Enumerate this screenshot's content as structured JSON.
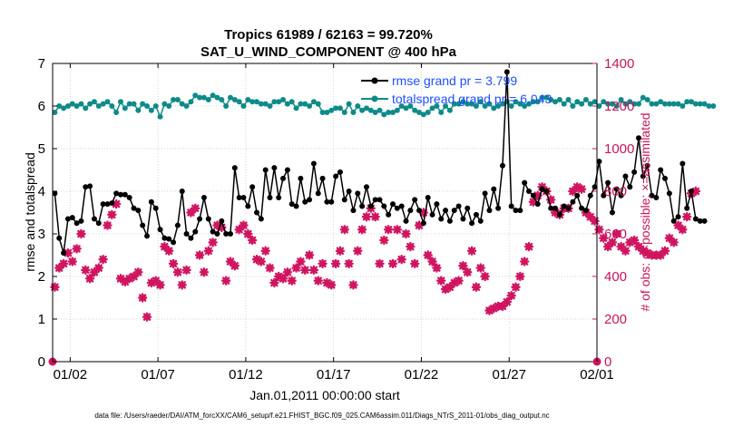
{
  "chart_data": {
    "type": "line",
    "title": "Tropics 61989 / 62163 = 99.720%",
    "subtitle": "SAT_U_WIND_COMPONENT @ 400 hPa",
    "xlabel": "Jan.01,2011 00:00:00 start",
    "ylabel": "rmse and totalspread",
    "y2label": "# of obs: o=possible; ×=assimilated",
    "footer": "data file: /Users/raeder/DAI/ATM_forcXX/CAM6_setup/f.e21.FHIST_BGC.f09_025.CAM6assim.011/Diags_NTrS_2011-01/obs_diag_output.nc",
    "xlim": [
      0,
      31
    ],
    "ylim": [
      0,
      7
    ],
    "y2lim": [
      0,
      1400
    ],
    "x_ticks": [
      {
        "x": 1,
        "label": "01/02"
      },
      {
        "x": 6,
        "label": "01/07"
      },
      {
        "x": 11,
        "label": "01/12"
      },
      {
        "x": 16,
        "label": "01/17"
      },
      {
        "x": 21,
        "label": "01/22"
      },
      {
        "x": 26,
        "label": "01/27"
      },
      {
        "x": 31,
        "label": "02/01"
      }
    ],
    "y_ticks": [
      0,
      1,
      2,
      3,
      4,
      5,
      6,
      7
    ],
    "y2_ticks": [
      0,
      200,
      400,
      600,
      800,
      1000,
      1200,
      1400
    ],
    "grid": true,
    "legend_position": "top-right",
    "step_days": 0.25,
    "colors": {
      "rmse": "#000000",
      "spread": "#0e8a8a",
      "obs": "#d01460",
      "right_axis": "#c8145a",
      "legend_text": "#1f4fff"
    },
    "series": [
      {
        "name": "rmse grand pr = 3.799",
        "axis": "left",
        "x0": 0.125,
        "values": [
          3.95,
          2.9,
          2.55,
          3.35,
          3.38,
          3.25,
          3.3,
          4.1,
          4.12,
          3.35,
          3.25,
          3.7,
          3.7,
          3.72,
          3.95,
          3.92,
          3.92,
          3.85,
          3.6,
          3.55,
          3.2,
          2.95,
          3.75,
          3.6,
          3.1,
          2.9,
          2.88,
          2.8,
          3.2,
          4.0,
          3.0,
          2.9,
          3.05,
          3.35,
          3.85,
          3.35,
          3.05,
          3.0,
          3.3,
          3.0,
          3.0,
          4.55,
          3.85,
          3.85,
          3.65,
          4.1,
          3.5,
          3.35,
          4.5,
          3.85,
          4.55,
          3.85,
          4.3,
          4.5,
          3.7,
          3.65,
          4.3,
          3.75,
          3.8,
          4.65,
          3.95,
          4.3,
          3.75,
          3.75,
          4.35,
          4.45,
          3.8,
          4.0,
          3.55,
          3.95,
          3.65,
          4.1,
          3.65,
          3.8,
          3.8,
          3.65,
          3.45,
          3.7,
          3.6,
          3.65,
          3.3,
          3.55,
          3.8,
          3.55,
          3.25,
          3.85,
          3.45,
          3.7,
          3.35,
          3.55,
          3.3,
          3.55,
          3.65,
          3.35,
          3.6,
          3.25,
          3.45,
          3.3,
          3.95,
          3.55,
          4.05,
          3.6,
          4.6,
          6.8,
          3.65,
          3.55,
          3.55,
          4.2,
          4.0,
          3.9,
          3.7,
          4.05,
          4.0,
          3.6,
          3.6,
          3.45,
          3.65,
          3.6,
          3.75,
          3.9,
          3.6,
          3.55,
          3.9,
          4.1,
          4.7,
          3.9,
          4.2,
          3.5,
          4.05,
          3.9,
          4.35,
          4.1,
          4.45,
          5.25,
          4.35,
          4.6,
          3.9,
          3.85,
          4.5,
          4.3,
          3.95,
          3.3,
          3.4,
          4.65,
          3.6,
          4.0,
          3.35,
          3.3,
          3.3
        ]
      },
      {
        "name": "totalspread grand pr = 6.043",
        "axis": "left",
        "x0": 0.125,
        "values": [
          5.85,
          6.0,
          5.95,
          6.0,
          6.05,
          6.0,
          6.05,
          5.95,
          6.05,
          6.1,
          6.0,
          6.05,
          6.1,
          6.0,
          5.85,
          6.1,
          5.95,
          6.05,
          6.05,
          5.9,
          6.05,
          6.0,
          5.9,
          6.0,
          5.75,
          6.05,
          6.0,
          6.15,
          6.15,
          6.05,
          6.0,
          6.1,
          6.25,
          6.2,
          6.2,
          6.15,
          6.25,
          6.2,
          6.15,
          6.0,
          6.2,
          6.15,
          6.1,
          6.0,
          6.15,
          6.1,
          6.1,
          6.05,
          6.05,
          6.0,
          6.1,
          6.1,
          6.15,
          6.05,
          6.1,
          5.95,
          6.05,
          6.05,
          6.0,
          6.1,
          6.05,
          5.85,
          5.85,
          5.9,
          5.95,
          5.95,
          5.85,
          6.05,
          5.85,
          6.0,
          5.9,
          5.95,
          5.9,
          5.85,
          5.9,
          5.8,
          5.85,
          5.85,
          5.9,
          6.0,
          5.95,
          6.0,
          5.9,
          5.85,
          5.8,
          5.85,
          5.95,
          6.0,
          5.85,
          6.0,
          5.9,
          6.05,
          6.05,
          6.1,
          6.05,
          6.05,
          6.0,
          6.1,
          6.0,
          6.05,
          5.95,
          6.0,
          6.05,
          6.1,
          6.0,
          6.1,
          6.05,
          6.0,
          6.05,
          6.1,
          6.1,
          6.2,
          6.2,
          6.15,
          6.1,
          6.15,
          6.05,
          6.15,
          6.0,
          6.1,
          6.05,
          6.15,
          6.05,
          6.1,
          6.0,
          6.1,
          6.05,
          6.05,
          6.0,
          6.15,
          6.05,
          6.1,
          6.05,
          6.05,
          6.2,
          6.15,
          6.05,
          6.05,
          6.1,
          6.05,
          6.05,
          6.05,
          6.05,
          6.0,
          6.1,
          6.1,
          6.05,
          6.05,
          6.05,
          6.0,
          6.0
        ]
      },
      {
        "name": "obs assimilated",
        "axis": "right",
        "x0": 0.125,
        "values": [
          350,
          440,
          460,
          510,
          470,
          530,
          600,
          430,
          390,
          420,
          440,
          480,
          640,
          690,
          740,
          390,
          375,
          390,
          400,
          420,
          300,
          210,
          370,
          380,
          360,
          540,
          520,
          460,
          420,
          360,
          430,
          700,
          720,
          500,
          420,
          520,
          560,
          640,
          630,
          380,
          470,
          450,
          620,
          640,
          600,
          570,
          480,
          470,
          520,
          440,
          370,
          400,
          390,
          420,
          380,
          440,
          470,
          430,
          500,
          430,
          380,
          460,
          370,
          360,
          460,
          520,
          620,
          460,
          360,
          520,
          620,
          680,
          720,
          680,
          460,
          570,
          620,
          460,
          620,
          480,
          600,
          540,
          460,
          640,
          700,
          500,
          470,
          440,
          380,
          340,
          350,
          370,
          380,
          450,
          420,
          520,
          350,
          440,
          400,
          240,
          250,
          260,
          260,
          280,
          310,
          350,
          400,
          470,
          540,
          750,
          780,
          820,
          800,
          760,
          700,
          690,
          720,
          720,
          800,
          820,
          810,
          700,
          680,
          660,
          620,
          580,
          540,
          560,
          600,
          540,
          520,
          560,
          570,
          540,
          520,
          510,
          500,
          500,
          500,
          520,
          580,
          560,
          640,
          620,
          680,
          790,
          800
        ]
      },
      {
        "name": "obs possible",
        "axis": "right",
        "points": [
          [
            0.0,
            0
          ],
          [
            31.0,
            0
          ]
        ]
      }
    ]
  }
}
